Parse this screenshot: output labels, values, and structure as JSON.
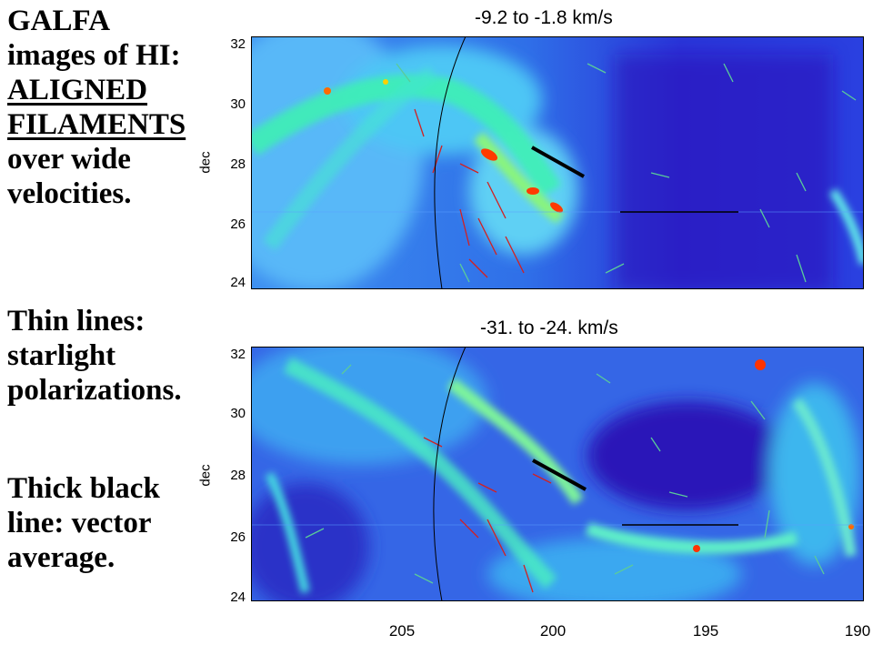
{
  "slide": {
    "heading_lines": [
      "GALFA",
      "images of HI:",
      "ALIGNED",
      "FILAMENTS",
      "over wide",
      "velocities."
    ],
    "thin_lines_text": [
      "Thin lines:",
      "starlight",
      "polarizations."
    ],
    "thick_line_text": [
      "Thick black",
      "line: vector",
      "average."
    ]
  },
  "panels": [
    {
      "title": "-9.2 to  -1.8 km/s",
      "ylabel": "dec",
      "yticks": [
        "32",
        "30",
        "28",
        "26",
        "24"
      ]
    },
    {
      "title": "-31. to  -24. km/s",
      "ylabel": "dec",
      "yticks": [
        "32",
        "30",
        "28",
        "26",
        "24"
      ]
    }
  ],
  "xaxis": {
    "ticks": [
      "205",
      "200",
      "195",
      "190"
    ]
  },
  "colors": {
    "background": "#2b3ce0",
    "filament": "#33ffb0",
    "hot": "#ff3300",
    "polarization_thin_blue": "#5acb9a",
    "polarization_thin_red": "#d32020",
    "vector_average": "#000000"
  }
}
